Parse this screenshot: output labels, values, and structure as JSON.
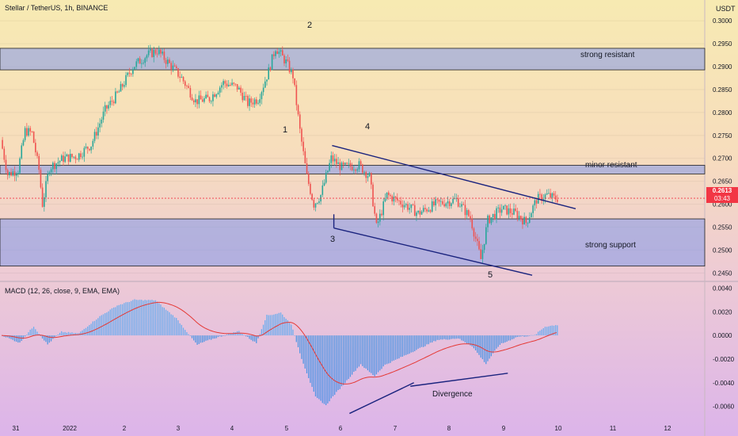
{
  "header": {
    "symbol_line": "Stellar / TetherUS, 1h, BINANCE",
    "currency": "USDT"
  },
  "macd": {
    "label": "MACD (12, 26, close, 9, EMA, EMA)"
  },
  "price_tag": {
    "price": "0.2613",
    "countdown": "03:43"
  },
  "colors": {
    "up": "#26a69a",
    "down": "#ef5350",
    "zone_fill": "#8a9ce8",
    "price_line": "#f23645",
    "macd_line": "#2962ff",
    "signal_line": "#e53935"
  },
  "annotations": {
    "w1": "1",
    "w2": "2",
    "w3": "3",
    "w4": "4",
    "w5": "5",
    "strong_resistant": "strong resistant",
    "minor_resistant": "minor resistant",
    "strong_support": "strong support",
    "divergence": "Divergence"
  },
  "chart_data": [
    {
      "type": "candlestick",
      "yaxis_ticks": [
        "0.3000",
        "0.2950",
        "0.2900",
        "0.2850",
        "0.2800",
        "0.2750",
        "0.2700",
        "0.2650",
        "0.2600",
        "0.2550",
        "0.2500",
        "0.2450"
      ],
      "ylim": [
        0.2435,
        0.3035
      ],
      "xaxis_ticks": [
        "31",
        "2022",
        "2",
        "3",
        "4",
        "5",
        "6",
        "7",
        "8",
        "9",
        "10",
        "11",
        "12"
      ],
      "current_price": 0.2613,
      "zones": [
        {
          "name": "strong resistant",
          "from": 0.2893,
          "to": 0.294
        },
        {
          "name": "minor resistant",
          "from": 0.2666,
          "to": 0.2685
        },
        {
          "name": "strong support",
          "from": 0.2465,
          "to": 0.2568
        }
      ],
      "waypoints": [
        [
          0,
          0.274
        ],
        [
          4,
          0.2665
        ],
        [
          10,
          0.2675
        ],
        [
          14,
          0.276
        ],
        [
          18,
          0.2755
        ],
        [
          22,
          0.2675
        ],
        [
          24,
          0.26
        ],
        [
          28,
          0.268
        ],
        [
          36,
          0.27
        ],
        [
          44,
          0.2705
        ],
        [
          52,
          0.273
        ],
        [
          60,
          0.2805
        ],
        [
          68,
          0.2845
        ],
        [
          76,
          0.29
        ],
        [
          84,
          0.2925
        ],
        [
          90,
          0.2935
        ],
        [
          96,
          0.291
        ],
        [
          104,
          0.2875
        ],
        [
          112,
          0.2825
        ],
        [
          120,
          0.283
        ],
        [
          128,
          0.2865
        ],
        [
          136,
          0.2855
        ],
        [
          142,
          0.282
        ],
        [
          148,
          0.283
        ],
        [
          154,
          0.289
        ],
        [
          158,
          0.2942
        ],
        [
          164,
          0.291
        ],
        [
          168,
          0.288
        ],
        [
          172,
          0.276
        ],
        [
          176,
          0.266
        ],
        [
          180,
          0.26
        ],
        [
          184,
          0.262
        ],
        [
          190,
          0.27
        ],
        [
          196,
          0.268
        ],
        [
          206,
          0.2685
        ],
        [
          212,
          0.266
        ],
        [
          216,
          0.255
        ],
        [
          222,
          0.262
        ],
        [
          232,
          0.26
        ],
        [
          240,
          0.258
        ],
        [
          250,
          0.26
        ],
        [
          262,
          0.261
        ],
        [
          270,
          0.257
        ],
        [
          276,
          0.248
        ],
        [
          280,
          0.2565
        ],
        [
          288,
          0.259
        ],
        [
          296,
          0.258
        ],
        [
          302,
          0.256
        ],
        [
          308,
          0.261
        ],
        [
          314,
          0.262
        ],
        [
          318,
          0.2613
        ]
      ]
    },
    {
      "type": "macd",
      "yaxis_ticks": [
        "0.0040",
        "0.0020",
        "0.0000",
        "-0.0020",
        "-0.0040",
        "-0.0060"
      ],
      "ylim": [
        -0.0073,
        0.0045
      ],
      "line_waypoints": [
        [
          0,
          0.0
        ],
        [
          10,
          -0.0007
        ],
        [
          18,
          0.0008
        ],
        [
          26,
          -0.0008
        ],
        [
          34,
          0.0003
        ],
        [
          44,
          0.0002
        ],
        [
          56,
          0.0018
        ],
        [
          66,
          0.0029
        ],
        [
          76,
          0.0035
        ],
        [
          88,
          0.0035
        ],
        [
          100,
          0.0018
        ],
        [
          112,
          -0.0008
        ],
        [
          124,
          -0.0002
        ],
        [
          136,
          0.0004
        ],
        [
          146,
          -0.0007
        ],
        [
          152,
          0.0018
        ],
        [
          160,
          0.0022
        ],
        [
          166,
          0.0012
        ],
        [
          172,
          -0.002
        ],
        [
          180,
          -0.0058
        ],
        [
          186,
          -0.0068
        ],
        [
          196,
          -0.005
        ],
        [
          206,
          -0.003
        ],
        [
          214,
          -0.004
        ],
        [
          220,
          -0.003
        ],
        [
          232,
          -0.002
        ],
        [
          250,
          -0.0005
        ],
        [
          262,
          -0.0003
        ],
        [
          270,
          -0.001
        ],
        [
          278,
          -0.0027
        ],
        [
          286,
          -0.001
        ],
        [
          296,
          -0.0002
        ],
        [
          306,
          0.0
        ],
        [
          312,
          0.0008
        ],
        [
          318,
          0.001
        ]
      ]
    }
  ]
}
